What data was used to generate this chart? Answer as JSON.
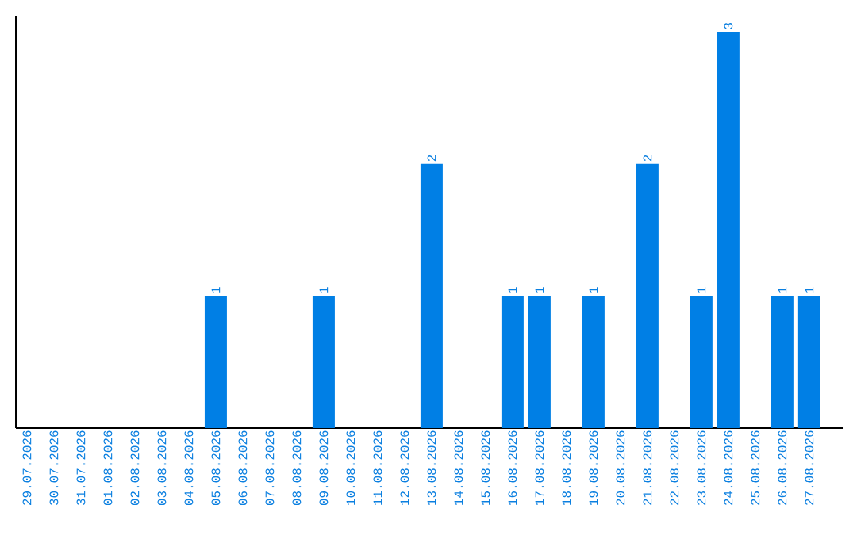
{
  "chart_data": {
    "type": "bar",
    "categories": [
      "29.07.2026",
      "30.07.2026",
      "31.07.2026",
      "01.08.2026",
      "02.08.2026",
      "03.08.2026",
      "04.08.2026",
      "05.08.2026",
      "06.08.2026",
      "07.08.2026",
      "08.08.2026",
      "09.08.2026",
      "10.08.2026",
      "11.08.2026",
      "12.08.2026",
      "13.08.2026",
      "14.08.2026",
      "15.08.2026",
      "16.08.2026",
      "17.08.2026",
      "18.08.2026",
      "19.08.2026",
      "20.08.2026",
      "21.08.2026",
      "22.08.2026",
      "23.08.2026",
      "24.08.2026",
      "25.08.2026",
      "26.08.2026",
      "27.08.2026"
    ],
    "values": [
      0,
      0,
      0,
      0,
      0,
      0,
      0,
      1,
      0,
      0,
      0,
      1,
      0,
      0,
      0,
      2,
      0,
      0,
      1,
      1,
      0,
      1,
      0,
      2,
      0,
      1,
      3,
      0,
      1,
      1
    ],
    "value_labels": [
      null,
      null,
      null,
      null,
      null,
      null,
      null,
      "1",
      null,
      null,
      null,
      "1",
      null,
      null,
      null,
      "2",
      null,
      null,
      "1",
      "1",
      null,
      "1",
      null,
      "2",
      null,
      "1",
      "3",
      null,
      "1",
      "1"
    ],
    "color": "#007fe5",
    "ylim": [
      0,
      3.12
    ],
    "tick_labels": "x"
  }
}
